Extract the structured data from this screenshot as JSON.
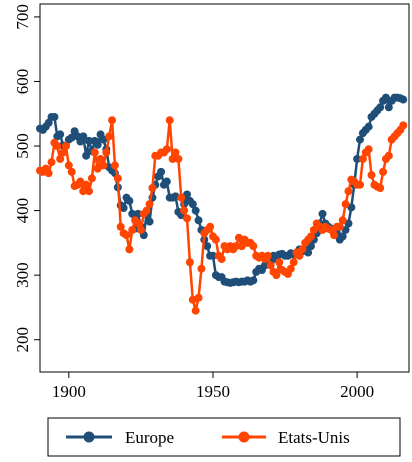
{
  "chart_data": {
    "type": "line",
    "title": "",
    "xlabel": "",
    "ylabel": "",
    "xlim": [
      1890,
      2018
    ],
    "ylim": [
      150,
      720
    ],
    "x_ticks": [
      1900,
      1950,
      2000
    ],
    "x_tick_labels": [
      "1900",
      "1950",
      "2000"
    ],
    "y_ticks": [
      200,
      300,
      400,
      500,
      600,
      700
    ],
    "y_tick_labels": [
      "200",
      "300",
      "400",
      "500",
      "600",
      "700"
    ],
    "grid": false,
    "legend_position": "bottom",
    "series": [
      {
        "name": "Europe",
        "color": "#1f4e79",
        "marker": "circle",
        "x": [
          1890,
          1891,
          1892,
          1893,
          1894,
          1895,
          1896,
          1897,
          1898,
          1899,
          1900,
          1901,
          1902,
          1903,
          1904,
          1905,
          1906,
          1907,
          1908,
          1909,
          1910,
          1911,
          1912,
          1913,
          1914,
          1915,
          1916,
          1917,
          1918,
          1919,
          1920,
          1921,
          1922,
          1923,
          1924,
          1925,
          1926,
          1927,
          1928,
          1929,
          1930,
          1931,
          1932,
          1933,
          1934,
          1935,
          1936,
          1937,
          1938,
          1939,
          1940,
          1941,
          1942,
          1943,
          1944,
          1945,
          1946,
          1947,
          1948,
          1949,
          1950,
          1951,
          1952,
          1953,
          1954,
          1955,
          1956,
          1957,
          1958,
          1959,
          1960,
          1961,
          1962,
          1963,
          1964,
          1965,
          1966,
          1967,
          1968,
          1969,
          1970,
          1971,
          1972,
          1973,
          1974,
          1975,
          1976,
          1977,
          1978,
          1979,
          1980,
          1981,
          1982,
          1983,
          1984,
          1985,
          1986,
          1987,
          1988,
          1989,
          1990,
          1991,
          1992,
          1993,
          1994,
          1995,
          1996,
          1997,
          1998,
          1999,
          2000,
          2001,
          2002,
          2003,
          2004,
          2005,
          2006,
          2007,
          2008,
          2009,
          2010,
          2011,
          2012,
          2013,
          2014,
          2015,
          2016
        ],
        "y": [
          527,
          525,
          530,
          536,
          545,
          545,
          515,
          518,
          501,
          500,
          510,
          513,
          523,
          515,
          507,
          515,
          485,
          508,
          492,
          508,
          502,
          518,
          510,
          495,
          467,
          462,
          458,
          436,
          408,
          404,
          420,
          415,
          395,
          372,
          395,
          375,
          362,
          395,
          383,
          420,
          440,
          453,
          460,
          440,
          445,
          420,
          420,
          422,
          398,
          393,
          410,
          425,
          415,
          410,
          400,
          385,
          370,
          355,
          345,
          330,
          330,
          300,
          297,
          297,
          290,
          289,
          288,
          289,
          290,
          289,
          290,
          290,
          292,
          290,
          292,
          305,
          310,
          308,
          315,
          322,
          320,
          330,
          325,
          332,
          333,
          330,
          330,
          334,
          332,
          333,
          340,
          337,
          340,
          335,
          345,
          355,
          365,
          380,
          395,
          380,
          375,
          372,
          370,
          365,
          355,
          360,
          370,
          380,
          405,
          440,
          480,
          510,
          520,
          525,
          530,
          545,
          550,
          555,
          560,
          570,
          575,
          560,
          570,
          575,
          575,
          574,
          572
        ]
      },
      {
        "name": "Etats-Unis",
        "color": "#ff4500",
        "marker": "circle",
        "x": [
          1890,
          1891,
          1892,
          1893,
          1894,
          1895,
          1896,
          1897,
          1898,
          1899,
          1900,
          1901,
          1902,
          1903,
          1904,
          1905,
          1906,
          1907,
          1908,
          1909,
          1910,
          1911,
          1912,
          1913,
          1914,
          1915,
          1916,
          1917,
          1918,
          1919,
          1920,
          1921,
          1922,
          1923,
          1924,
          1925,
          1926,
          1927,
          1928,
          1929,
          1930,
          1931,
          1932,
          1933,
          1934,
          1935,
          1936,
          1937,
          1938,
          1939,
          1940,
          1941,
          1942,
          1943,
          1944,
          1945,
          1946,
          1947,
          1948,
          1949,
          1950,
          1951,
          1952,
          1953,
          1954,
          1955,
          1956,
          1957,
          1958,
          1959,
          1960,
          1961,
          1962,
          1963,
          1964,
          1965,
          1966,
          1967,
          1968,
          1969,
          1970,
          1971,
          1972,
          1973,
          1974,
          1975,
          1976,
          1977,
          1978,
          1979,
          1980,
          1981,
          1982,
          1983,
          1984,
          1985,
          1986,
          1987,
          1988,
          1989,
          1990,
          1991,
          1992,
          1993,
          1994,
          1995,
          1996,
          1997,
          1998,
          1999,
          2000,
          2001,
          2002,
          2003,
          2004,
          2005,
          2006,
          2007,
          2008,
          2009,
          2010,
          2011,
          2012,
          2013,
          2014,
          2015,
          2016
        ],
        "y": [
          462,
          460,
          465,
          458,
          475,
          505,
          500,
          480,
          490,
          500,
          470,
          460,
          438,
          440,
          445,
          430,
          440,
          430,
          450,
          490,
          465,
          480,
          470,
          490,
          515,
          540,
          470,
          450,
          375,
          365,
          362,
          340,
          370,
          385,
          380,
          370,
          395,
          400,
          410,
          435,
          485,
          485,
          490,
          490,
          495,
          540,
          480,
          490,
          480,
          420,
          400,
          388,
          320,
          262,
          245,
          265,
          310,
          365,
          370,
          375,
          360,
          355,
          330,
          325,
          345,
          340,
          345,
          340,
          345,
          358,
          345,
          355,
          350,
          350,
          345,
          330,
          327,
          330,
          325,
          330,
          315,
          305,
          300,
          320,
          308,
          305,
          302,
          310,
          320,
          335,
          330,
          340,
          350,
          355,
          360,
          370,
          380,
          375,
          370,
          375,
          372,
          370,
          362,
          375,
          375,
          385,
          410,
          430,
          448,
          445,
          440,
          440,
          480,
          490,
          495,
          455,
          440,
          437,
          435,
          460,
          480,
          485,
          510,
          515,
          520,
          525,
          532
        ]
      }
    ]
  },
  "legend": {
    "items": [
      {
        "label": "Europe"
      },
      {
        "label": "Etats-Unis"
      }
    ]
  }
}
